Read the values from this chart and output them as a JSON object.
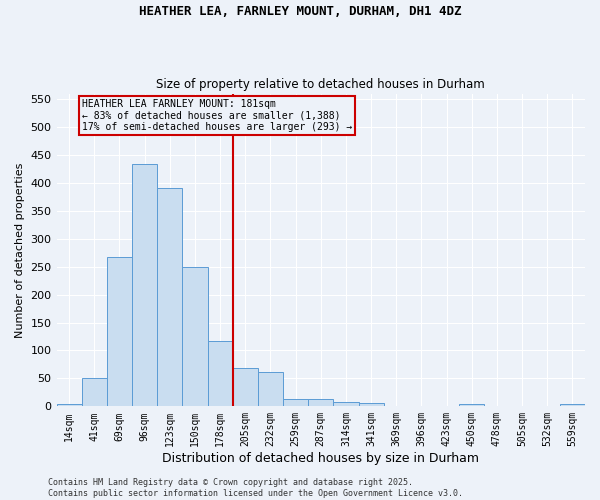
{
  "title1": "HEATHER LEA, FARNLEY MOUNT, DURHAM, DH1 4DZ",
  "title2": "Size of property relative to detached houses in Durham",
  "xlabel": "Distribution of detached houses by size in Durham",
  "ylabel": "Number of detached properties",
  "categories": [
    "14sqm",
    "41sqm",
    "69sqm",
    "96sqm",
    "123sqm",
    "150sqm",
    "178sqm",
    "205sqm",
    "232sqm",
    "259sqm",
    "287sqm",
    "314sqm",
    "341sqm",
    "369sqm",
    "396sqm",
    "423sqm",
    "450sqm",
    "478sqm",
    "505sqm",
    "532sqm",
    "559sqm"
  ],
  "values": [
    4,
    51,
    267,
    433,
    391,
    250,
    117,
    69,
    61,
    14,
    14,
    8,
    6,
    0,
    0,
    0,
    4,
    0,
    0,
    0,
    4
  ],
  "bar_color": "#c9ddf0",
  "bar_edge_color": "#5b9bd5",
  "vline_index": 6,
  "vline_color": "#cc0000",
  "annotation_text": "HEATHER LEA FARNLEY MOUNT: 181sqm\n← 83% of detached houses are smaller (1,388)\n17% of semi-detached houses are larger (293) →",
  "annotation_box_edgecolor": "#cc0000",
  "ylim": [
    0,
    560
  ],
  "yticks": [
    0,
    50,
    100,
    150,
    200,
    250,
    300,
    350,
    400,
    450,
    500,
    550
  ],
  "bg_color": "#edf2f9",
  "grid_color": "#ffffff",
  "footer1": "Contains HM Land Registry data © Crown copyright and database right 2025.",
  "footer2": "Contains public sector information licensed under the Open Government Licence v3.0."
}
